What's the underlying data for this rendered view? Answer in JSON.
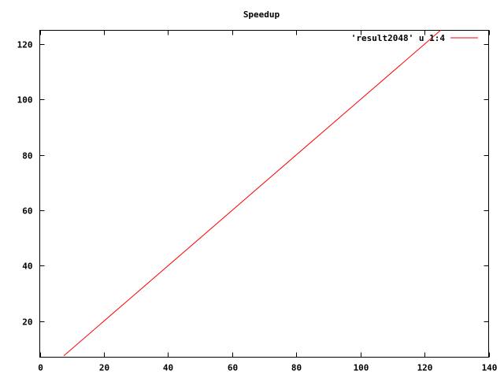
{
  "chart_data": {
    "type": "line",
    "title": "Speedup",
    "xlabel": "",
    "ylabel": "",
    "xlim": [
      0,
      140
    ],
    "ylim": [
      7,
      125
    ],
    "x_ticks": [
      0,
      20,
      40,
      60,
      80,
      100,
      120,
      140
    ],
    "y_ticks": [
      20,
      40,
      60,
      80,
      100,
      120
    ],
    "grid": false,
    "legend_position": "top-right",
    "series": [
      {
        "name": "'result2048' u 1:4",
        "color": "#ff0000",
        "x": [
          7.5,
          125
        ],
        "y": [
          7.5,
          125
        ]
      }
    ]
  }
}
